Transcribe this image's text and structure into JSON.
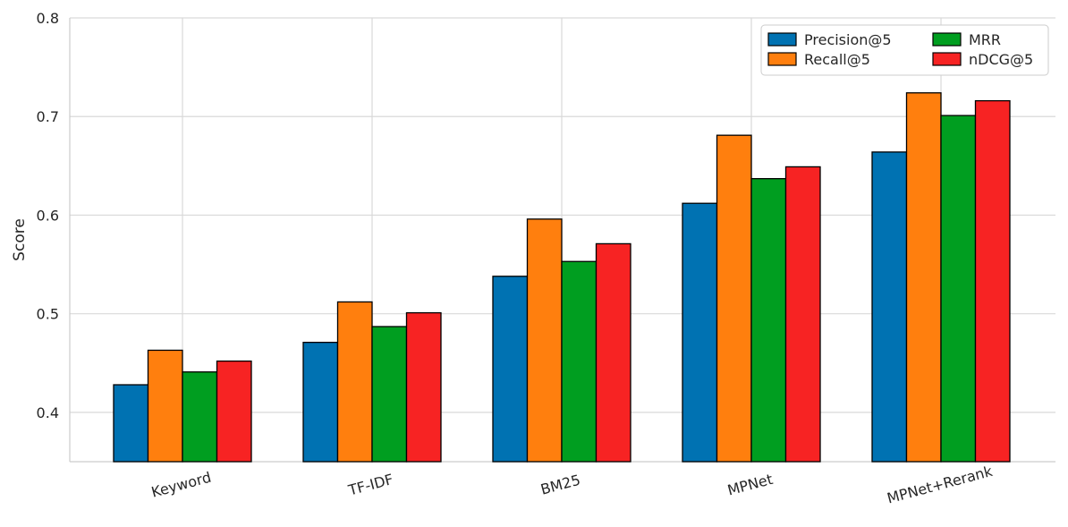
{
  "chart_data": {
    "type": "bar",
    "ylabel": "Score",
    "xlabel": "",
    "ylim": [
      0.35,
      0.8
    ],
    "yticks": [
      "0.4",
      "0.5",
      "0.6",
      "0.7",
      "0.8"
    ],
    "grid": true,
    "legend_position": "top-right",
    "categories": [
      "Keyword",
      "TF-IDF",
      "BM25",
      "MPNet",
      "MPNet+Rerank"
    ],
    "series": [
      {
        "name": "Precision@5",
        "color": "#0072B2",
        "values": [
          0.428,
          0.471,
          0.538,
          0.612,
          0.664
        ]
      },
      {
        "name": "Recall@5",
        "color": "#FF7F0E",
        "values": [
          0.463,
          0.512,
          0.596,
          0.681,
          0.724
        ]
      },
      {
        "name": "MRR",
        "color": "#009E20",
        "values": [
          0.441,
          0.487,
          0.553,
          0.637,
          0.701
        ]
      },
      {
        "name": "nDCG@5",
        "color": "#F72323",
        "values": [
          0.452,
          0.501,
          0.571,
          0.649,
          0.716
        ]
      }
    ]
  }
}
